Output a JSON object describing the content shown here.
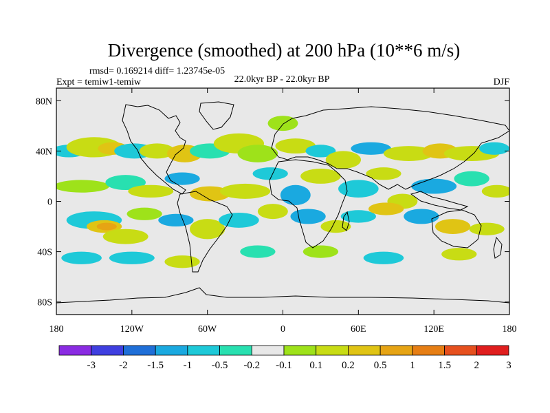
{
  "chart_data": {
    "type": "contour-map",
    "title": "Divergence (smoothed) at 200 hPa (10**6 m/s)",
    "stats": "rmsd= 0.169214 diff= 1.23745e-05",
    "experiment": "Expt = temiw1-temiw",
    "period": "22.0kyr BP - 22.0kyr BP",
    "season": "DJF",
    "xlim": [
      -180,
      180
    ],
    "ylim": [
      -90,
      90
    ],
    "y_ticks": [
      {
        "lat": 80,
        "label": "80N"
      },
      {
        "lat": 40,
        "label": "40N"
      },
      {
        "lat": 0,
        "label": "0"
      },
      {
        "lat": -40,
        "label": "40S"
      },
      {
        "lat": -80,
        "label": "80S"
      }
    ],
    "x_ticks": [
      {
        "lon": -180,
        "label": "180"
      },
      {
        "lon": -120,
        "label": "120W"
      },
      {
        "lon": -60,
        "label": "60W"
      },
      {
        "lon": 0,
        "label": "0"
      },
      {
        "lon": 60,
        "label": "60E"
      },
      {
        "lon": 120,
        "label": "120E"
      },
      {
        "lon": 180,
        "label": "180"
      }
    ],
    "colorbar": {
      "colors": [
        "#8a2be2",
        "#3f3fe0",
        "#1f6fd8",
        "#1aa9e0",
        "#1ec9d8",
        "#28e0b0",
        "#e8e8e8",
        "#9ee21a",
        "#c8dc14",
        "#e0c414",
        "#e6a414",
        "#e67e14",
        "#e6501e",
        "#e01e1e"
      ],
      "labels": [
        "-3",
        "-2",
        "-1.5",
        "-1",
        "-0.5",
        "-0.2",
        "-0.1",
        "0.1",
        "0.2",
        "0.5",
        "1",
        "1.5",
        "2",
        "3"
      ]
    },
    "blobs": [
      {
        "lon": -170,
        "lat": 40,
        "rx": 14,
        "ry": 5,
        "level": "-0.5",
        "color": "#1ec9d8"
      },
      {
        "lon": -150,
        "lat": 43,
        "rx": 22,
        "ry": 8,
        "level": "0.5",
        "color": "#c8dc14"
      },
      {
        "lon": -135,
        "lat": 42,
        "rx": 12,
        "ry": 5,
        "level": "1",
        "color": "#e0c414"
      },
      {
        "lon": -118,
        "lat": 40,
        "rx": 16,
        "ry": 6,
        "level": "-0.5",
        "color": "#1ec9d8"
      },
      {
        "lon": -100,
        "lat": 40,
        "rx": 14,
        "ry": 6,
        "level": "0.5",
        "color": "#c8dc14"
      },
      {
        "lon": -78,
        "lat": 38,
        "rx": 14,
        "ry": 7,
        "level": "1",
        "color": "#e0c414"
      },
      {
        "lon": -58,
        "lat": 40,
        "rx": 16,
        "ry": 6,
        "level": "-0.2",
        "color": "#28e0b0"
      },
      {
        "lon": -35,
        "lat": 46,
        "rx": 20,
        "ry": 8,
        "level": "0.5",
        "color": "#c8dc14"
      },
      {
        "lon": -20,
        "lat": 38,
        "rx": 16,
        "ry": 7,
        "level": "0.2",
        "color": "#9ee21a"
      },
      {
        "lon": 0,
        "lat": 62,
        "rx": 12,
        "ry": 6,
        "level": "0.2",
        "color": "#9ee21a"
      },
      {
        "lon": 10,
        "lat": 44,
        "rx": 16,
        "ry": 6,
        "level": "0.5",
        "color": "#c8dc14"
      },
      {
        "lon": 30,
        "lat": 40,
        "rx": 12,
        "ry": 5,
        "level": "-0.5",
        "color": "#1ec9d8"
      },
      {
        "lon": 48,
        "lat": 33,
        "rx": 14,
        "ry": 7,
        "level": "0.5",
        "color": "#c8dc14"
      },
      {
        "lon": 70,
        "lat": 42,
        "rx": 16,
        "ry": 5,
        "level": "-0.5",
        "color": "#1aa9e0"
      },
      {
        "lon": 100,
        "lat": 38,
        "rx": 20,
        "ry": 6,
        "level": "0.5",
        "color": "#c8dc14"
      },
      {
        "lon": 125,
        "lat": 40,
        "rx": 14,
        "ry": 6,
        "level": "1",
        "color": "#e0c414"
      },
      {
        "lon": 150,
        "lat": 38,
        "rx": 22,
        "ry": 6,
        "level": "0.5",
        "color": "#c8dc14"
      },
      {
        "lon": 168,
        "lat": 42,
        "rx": 12,
        "ry": 5,
        "level": "-0.5",
        "color": "#1ec9d8"
      },
      {
        "lon": -160,
        "lat": 12,
        "rx": 22,
        "ry": 5,
        "level": "0.2",
        "color": "#9ee21a"
      },
      {
        "lon": -125,
        "lat": 15,
        "rx": 16,
        "ry": 6,
        "level": "-0.2",
        "color": "#28e0b0"
      },
      {
        "lon": -105,
        "lat": 8,
        "rx": 18,
        "ry": 5,
        "level": "0.5",
        "color": "#c8dc14"
      },
      {
        "lon": -80,
        "lat": 18,
        "rx": 14,
        "ry": 5,
        "level": "-0.5",
        "color": "#1aa9e0"
      },
      {
        "lon": -58,
        "lat": 6,
        "rx": 16,
        "ry": 6,
        "level": "1",
        "color": "#e0c414"
      },
      {
        "lon": -30,
        "lat": 8,
        "rx": 20,
        "ry": 6,
        "level": "0.5",
        "color": "#c8dc14"
      },
      {
        "lon": -10,
        "lat": 22,
        "rx": 14,
        "ry": 5,
        "level": "-0.5",
        "color": "#1ec9d8"
      },
      {
        "lon": 10,
        "lat": 5,
        "rx": 12,
        "ry": 8,
        "level": "-0.5",
        "color": "#1aa9e0"
      },
      {
        "lon": 30,
        "lat": 20,
        "rx": 16,
        "ry": 6,
        "level": "0.5",
        "color": "#c8dc14"
      },
      {
        "lon": 60,
        "lat": 10,
        "rx": 16,
        "ry": 7,
        "level": "-0.5",
        "color": "#1ec9d8"
      },
      {
        "lon": 80,
        "lat": 22,
        "rx": 14,
        "ry": 5,
        "level": "0.5",
        "color": "#c8dc14"
      },
      {
        "lon": 95,
        "lat": 0,
        "rx": 12,
        "ry": 6,
        "level": "0.5",
        "color": "#c8dc14"
      },
      {
        "lon": 120,
        "lat": 12,
        "rx": 18,
        "ry": 6,
        "level": "-0.5",
        "color": "#1aa9e0"
      },
      {
        "lon": 150,
        "lat": 18,
        "rx": 14,
        "ry": 6,
        "level": "-0.2",
        "color": "#28e0b0"
      },
      {
        "lon": 170,
        "lat": 8,
        "rx": 12,
        "ry": 5,
        "level": "0.5",
        "color": "#c8dc14"
      },
      {
        "lon": -150,
        "lat": -15,
        "rx": 22,
        "ry": 7,
        "level": "-0.5",
        "color": "#1ec9d8"
      },
      {
        "lon": -142,
        "lat": -20,
        "rx": 14,
        "ry": 5,
        "level": "1",
        "color": "#e0c414"
      },
      {
        "lon": -140,
        "lat": -20,
        "rx": 8,
        "ry": 3,
        "level": "1.5",
        "color": "#e6a414"
      },
      {
        "lon": -125,
        "lat": -28,
        "rx": 18,
        "ry": 6,
        "level": "0.5",
        "color": "#c8dc14"
      },
      {
        "lon": -110,
        "lat": -10,
        "rx": 14,
        "ry": 5,
        "level": "0.2",
        "color": "#9ee21a"
      },
      {
        "lon": -85,
        "lat": -15,
        "rx": 14,
        "ry": 5,
        "level": "-0.5",
        "color": "#1aa9e0"
      },
      {
        "lon": -60,
        "lat": -22,
        "rx": 14,
        "ry": 8,
        "level": "0.5",
        "color": "#c8dc14"
      },
      {
        "lon": -35,
        "lat": -15,
        "rx": 16,
        "ry": 6,
        "level": "-0.5",
        "color": "#1ec9d8"
      },
      {
        "lon": -8,
        "lat": -8,
        "rx": 12,
        "ry": 6,
        "level": "0.5",
        "color": "#c8dc14"
      },
      {
        "lon": 20,
        "lat": -12,
        "rx": 14,
        "ry": 6,
        "level": "-0.5",
        "color": "#1aa9e0"
      },
      {
        "lon": 42,
        "lat": -20,
        "rx": 12,
        "ry": 5,
        "level": "0.5",
        "color": "#c8dc14"
      },
      {
        "lon": 60,
        "lat": -12,
        "rx": 14,
        "ry": 5,
        "level": "-0.5",
        "color": "#1ec9d8"
      },
      {
        "lon": 82,
        "lat": -6,
        "rx": 14,
        "ry": 5,
        "level": "1",
        "color": "#e0c414"
      },
      {
        "lon": 110,
        "lat": -12,
        "rx": 14,
        "ry": 6,
        "level": "-0.5",
        "color": "#1aa9e0"
      },
      {
        "lon": 135,
        "lat": -20,
        "rx": 14,
        "ry": 6,
        "level": "1",
        "color": "#e0c414"
      },
      {
        "lon": 162,
        "lat": -22,
        "rx": 14,
        "ry": 5,
        "level": "0.5",
        "color": "#c8dc14"
      },
      {
        "lon": -160,
        "lat": -45,
        "rx": 16,
        "ry": 5,
        "level": "-0.5",
        "color": "#1ec9d8"
      },
      {
        "lon": -120,
        "lat": -45,
        "rx": 18,
        "ry": 5,
        "level": "-0.5",
        "color": "#1ec9d8"
      },
      {
        "lon": -80,
        "lat": -48,
        "rx": 14,
        "ry": 5,
        "level": "0.5",
        "color": "#c8dc14"
      },
      {
        "lon": -20,
        "lat": -40,
        "rx": 14,
        "ry": 5,
        "level": "-0.2",
        "color": "#28e0b0"
      },
      {
        "lon": 30,
        "lat": -40,
        "rx": 14,
        "ry": 5,
        "level": "0.2",
        "color": "#9ee21a"
      },
      {
        "lon": 80,
        "lat": -45,
        "rx": 16,
        "ry": 5,
        "level": "-0.5",
        "color": "#1ec9d8"
      },
      {
        "lon": 140,
        "lat": -42,
        "rx": 14,
        "ry": 5,
        "level": "0.5",
        "color": "#c8dc14"
      }
    ]
  }
}
